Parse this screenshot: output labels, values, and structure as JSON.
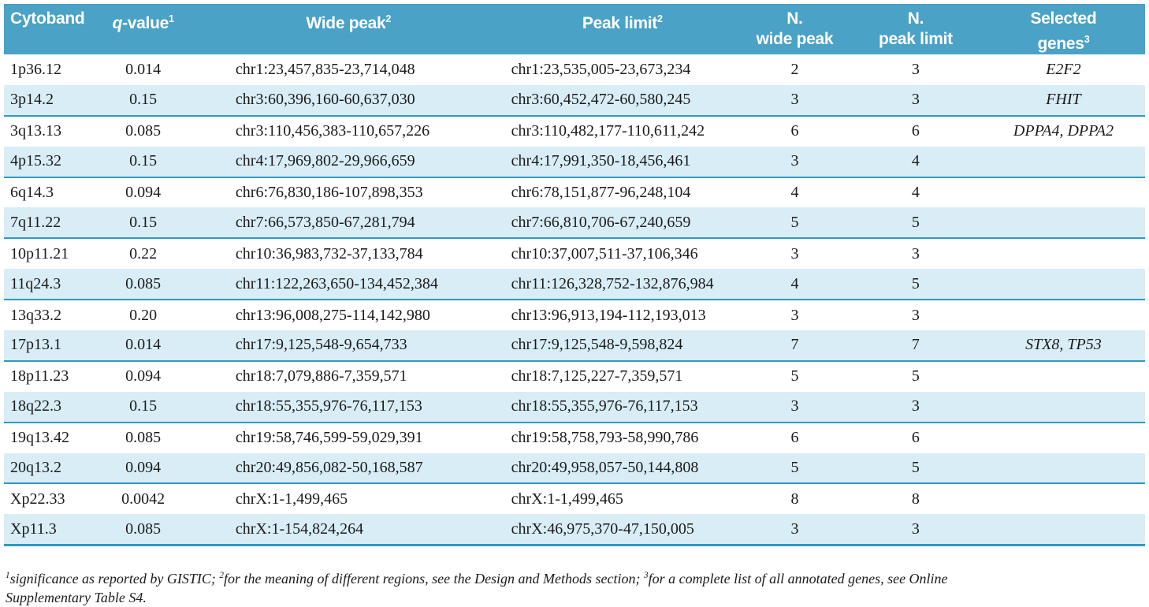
{
  "colors": {
    "header_bg": "#4aa2c6",
    "row_alt_bg": "#d9edf6",
    "row_line": "#2f99c1",
    "header_text": "#ffffff",
    "body_text": "#1b1b1b"
  },
  "table": {
    "columns": [
      {
        "id": "cytoband",
        "lines": [
          "Cytoband"
        ],
        "sup": "",
        "lead_italic": false
      },
      {
        "id": "q_value",
        "lines": [
          "q-value"
        ],
        "sup": "1",
        "lead_italic": true
      },
      {
        "id": "wide_peak",
        "lines": [
          "Wide peak"
        ],
        "sup": "2",
        "lead_italic": false
      },
      {
        "id": "peak_limit",
        "lines": [
          "Peak limit"
        ],
        "sup": "2",
        "lead_italic": false
      },
      {
        "id": "n_wide_peak",
        "lines": [
          "N.",
          "wide peak"
        ],
        "sup": "",
        "lead_italic": false
      },
      {
        "id": "n_peak_limit",
        "lines": [
          "N.",
          "peak limit"
        ],
        "sup": "",
        "lead_italic": false
      },
      {
        "id": "selected_genes",
        "lines": [
          "Selected",
          "genes"
        ],
        "sup": "3",
        "lead_italic": false
      }
    ],
    "rows": [
      {
        "cytoband": "1p36.12",
        "q_value": "0.014",
        "wide_peak": "chr1:23,457,835-23,714,048",
        "peak_limit": "chr1:23,535,005-23,673,234",
        "n_wide_peak": "2",
        "n_peak_limit": "3",
        "selected_genes": "E2F2"
      },
      {
        "cytoband": "3p14.2",
        "q_value": "0.15",
        "wide_peak": "chr3:60,396,160-60,637,030",
        "peak_limit": "chr3:60,452,472-60,580,245",
        "n_wide_peak": "3",
        "n_peak_limit": "3",
        "selected_genes": "FHIT"
      },
      {
        "cytoband": "3q13.13",
        "q_value": "0.085",
        "wide_peak": "chr3:110,456,383-110,657,226",
        "peak_limit": "chr3:110,482,177-110,611,242",
        "n_wide_peak": "6",
        "n_peak_limit": "6",
        "selected_genes": "DPPA4, DPPA2"
      },
      {
        "cytoband": "4p15.32",
        "q_value": "0.15",
        "wide_peak": "chr4:17,969,802-29,966,659",
        "peak_limit": "chr4:17,991,350-18,456,461",
        "n_wide_peak": "3",
        "n_peak_limit": "4",
        "selected_genes": ""
      },
      {
        "cytoband": "6q14.3",
        "q_value": "0.094",
        "wide_peak": "chr6:76,830,186-107,898,353",
        "peak_limit": "chr6:78,151,877-96,248,104",
        "n_wide_peak": "4",
        "n_peak_limit": "4",
        "selected_genes": ""
      },
      {
        "cytoband": "7q11.22",
        "q_value": "0.15",
        "wide_peak": "chr7:66,573,850-67,281,794",
        "peak_limit": "chr7:66,810,706-67,240,659",
        "n_wide_peak": "5",
        "n_peak_limit": "5",
        "selected_genes": ""
      },
      {
        "cytoband": "10p11.21",
        "q_value": "0.22",
        "wide_peak": "chr10:36,983,732-37,133,784",
        "peak_limit": "chr10:37,007,511-37,106,346",
        "n_wide_peak": "3",
        "n_peak_limit": "3",
        "selected_genes": ""
      },
      {
        "cytoband": "11q24.3",
        "q_value": "0.085",
        "wide_peak": "chr11:122,263,650-134,452,384",
        "peak_limit": "chr11:126,328,752-132,876,984",
        "n_wide_peak": "4",
        "n_peak_limit": "5",
        "selected_genes": ""
      },
      {
        "cytoband": "13q33.2",
        "q_value": "0.20",
        "wide_peak": "chr13:96,008,275-114,142,980",
        "peak_limit": "chr13:96,913,194-112,193,013",
        "n_wide_peak": "3",
        "n_peak_limit": "3",
        "selected_genes": ""
      },
      {
        "cytoband": "17p13.1",
        "q_value": "0.014",
        "wide_peak": "chr17:9,125,548-9,654,733",
        "peak_limit": "chr17:9,125,548-9,598,824",
        "n_wide_peak": "7",
        "n_peak_limit": "7",
        "selected_genes": "STX8, TP53"
      },
      {
        "cytoband": "18p11.23",
        "q_value": "0.094",
        "wide_peak": "chr18:7,079,886-7,359,571",
        "peak_limit": "chr18:7,125,227-7,359,571",
        "n_wide_peak": "5",
        "n_peak_limit": "5",
        "selected_genes": ""
      },
      {
        "cytoband": "18q22.3",
        "q_value": "0.15",
        "wide_peak": "chr18:55,355,976-76,117,153",
        "peak_limit": "chr18:55,355,976-76,117,153",
        "n_wide_peak": "3",
        "n_peak_limit": "3",
        "selected_genes": ""
      },
      {
        "cytoband": "19q13.42",
        "q_value": "0.085",
        "wide_peak": "chr19:58,746,599-59,029,391",
        "peak_limit": "chr19:58,758,793-58,990,786",
        "n_wide_peak": "6",
        "n_peak_limit": "6",
        "selected_genes": ""
      },
      {
        "cytoband": "20q13.2",
        "q_value": "0.094",
        "wide_peak": "chr20:49,856,082-50,168,587",
        "peak_limit": "chr20:49,958,057-50,144,808",
        "n_wide_peak": "5",
        "n_peak_limit": "5",
        "selected_genes": ""
      },
      {
        "cytoband": "Xp22.33",
        "q_value": "0.0042",
        "wide_peak": "chrX:1-1,499,465",
        "peak_limit": "chrX:1-1,499,465",
        "n_wide_peak": "8",
        "n_peak_limit": "8",
        "selected_genes": ""
      },
      {
        "cytoband": "Xp11.3",
        "q_value": "0.085",
        "wide_peak": "chrX:1-154,824,264",
        "peak_limit": "chrX:46,975,370-47,150,005",
        "n_wide_peak": "3",
        "n_peak_limit": "3",
        "selected_genes": ""
      }
    ],
    "footnotes": [
      {
        "sup": "1",
        "text": "significance as reported by GISTIC; "
      },
      {
        "sup": "2",
        "text": "for the meaning of different regions, see the Design and Methods section; "
      },
      {
        "sup": "3",
        "text": "for a complete list of all annotated genes, see Online\nSupplementary Table S4."
      }
    ]
  }
}
